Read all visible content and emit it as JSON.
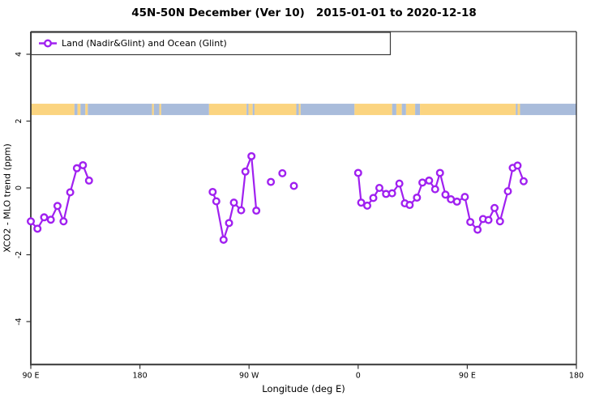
{
  "title": "45N-50N December (Ver 10)   2015-01-01 to 2020-12-18",
  "legend": {
    "label": "Land (Nadir&Glint) and Ocean (Glint)"
  },
  "axes": {
    "xlabel": "Longitude (deg E)",
    "ylabel": "XCO2 - MLO trend (ppm)"
  },
  "colors": {
    "series": "#A020F0",
    "land": "#FBD480",
    "ocean": "#A9BCDB",
    "axis": "#333333",
    "axis_heavy": "#4a4a4a",
    "tick_text": "#000000"
  },
  "chart_data": {
    "type": "line",
    "title": "45N-50N December (Ver 10)   2015-01-01 to 2020-12-18",
    "xlabel": "Longitude (deg E)",
    "ylabel": "XCO2 - MLO trend (ppm)",
    "legend": [
      "Land (Nadir&Glint) and Ocean (Glint)"
    ],
    "legend_position": "top-left",
    "grid": false,
    "x_axis_deg_span": [
      90,
      540
    ],
    "x_ticks": [
      {
        "t": 90,
        "label": "90 E"
      },
      {
        "t": 180,
        "label": "180"
      },
      {
        "t": 270,
        "label": "90 W"
      },
      {
        "t": 360,
        "label": "0"
      },
      {
        "t": 450,
        "label": "90 E"
      },
      {
        "t": 540,
        "label": "180"
      }
    ],
    "ylim": [
      -5.3,
      4.7
    ],
    "y_ticks": [
      {
        "v": -4,
        "label": "-4"
      },
      {
        "v": -2,
        "label": "-2"
      },
      {
        "v": 0,
        "label": "0"
      },
      {
        "v": 2,
        "label": "2"
      },
      {
        "v": 4,
        "label": "4"
      }
    ],
    "series": [
      {
        "name": "Land (Nadir&Glint) and Ocean (Glint)",
        "color": "#A020F0",
        "marker": "open-circle",
        "segments": [
          {
            "region": "east-asia",
            "line": true,
            "points": [
              [
                90,
                -1.0
              ],
              [
                95.5,
                -1.22
              ],
              [
                101,
                -0.88
              ],
              [
                106.5,
                -0.95
              ],
              [
                112,
                -0.54
              ],
              [
                117,
                -1.0
              ],
              [
                122.5,
                -0.13
              ],
              [
                128,
                0.59
              ],
              [
                133,
                0.68
              ],
              [
                138,
                0.22
              ]
            ]
          },
          {
            "region": "north-america",
            "line": true,
            "points": [
              [
                240,
                -0.12
              ],
              [
                243,
                -0.4
              ],
              [
                249,
                -1.55
              ],
              [
                253.5,
                -1.05
              ],
              [
                257.5,
                -0.44
              ],
              [
                263.5,
                -0.67
              ],
              [
                267,
                0.49
              ],
              [
                272,
                0.95
              ],
              [
                276,
                -0.68
              ]
            ]
          },
          {
            "region": "atlantic-isolated",
            "line": false,
            "points": [
              [
                288,
                0.18
              ],
              [
                297.5,
                0.44
              ],
              [
                307,
                0.06
              ]
            ]
          },
          {
            "region": "europe-asia",
            "line": true,
            "points": [
              [
                360,
                0.45
              ],
              [
                362.5,
                -0.44
              ],
              [
                367.5,
                -0.53
              ],
              [
                372.5,
                -0.3
              ],
              [
                377.5,
                0.0
              ],
              [
                383,
                -0.18
              ],
              [
                388,
                -0.16
              ],
              [
                394,
                0.13
              ],
              [
                398.5,
                -0.46
              ],
              [
                402.5,
                -0.51
              ],
              [
                408.5,
                -0.29
              ],
              [
                413,
                0.16
              ],
              [
                418.5,
                0.22
              ],
              [
                423.5,
                -0.04
              ],
              [
                427.5,
                0.45
              ],
              [
                432,
                -0.2
              ],
              [
                436.5,
                -0.34
              ],
              [
                441.5,
                -0.41
              ],
              [
                448,
                -0.27
              ],
              [
                452.5,
                -1.02
              ],
              [
                458.5,
                -1.25
              ],
              [
                463,
                -0.93
              ],
              [
                467.5,
                -0.96
              ],
              [
                472.5,
                -0.6
              ],
              [
                477,
                -1.0
              ],
              [
                483.5,
                -0.1
              ],
              [
                487.5,
                0.6
              ],
              [
                491.5,
                0.67
              ],
              [
                496.5,
                0.2
              ]
            ]
          }
        ]
      }
    ],
    "map_strip": {
      "description": "land/ocean band across plot near y=2.3",
      "value_top": 2.52,
      "value_bottom": 2.18,
      "land_color": "#FBD480",
      "ocean_color": "#A9BCDB",
      "segments": [
        [
          90,
          126,
          "land"
        ],
        [
          126,
          128.5,
          "ocean"
        ],
        [
          128.5,
          131,
          "land"
        ],
        [
          131,
          135,
          "ocean"
        ],
        [
          135,
          137,
          "land"
        ],
        [
          137,
          190,
          "ocean"
        ],
        [
          190,
          191.5,
          "land"
        ],
        [
          191.5,
          196,
          "ocean"
        ],
        [
          196,
          197.5,
          "land"
        ],
        [
          197.5,
          237,
          "ocean"
        ],
        [
          237,
          268,
          "land"
        ],
        [
          268,
          269.5,
          "ocean"
        ],
        [
          269.5,
          273,
          "land"
        ],
        [
          273,
          274.5,
          "ocean"
        ],
        [
          274.5,
          309,
          "land"
        ],
        [
          309,
          311,
          "ocean"
        ],
        [
          311,
          312.5,
          "land"
        ],
        [
          312.5,
          357,
          "ocean"
        ],
        [
          357,
          388,
          "land"
        ],
        [
          388,
          391.5,
          "ocean"
        ],
        [
          391.5,
          396,
          "land"
        ],
        [
          396,
          399.5,
          "ocean"
        ],
        [
          399.5,
          407,
          "land"
        ],
        [
          407,
          411,
          "ocean"
        ],
        [
          411,
          490,
          "land"
        ],
        [
          490,
          491.5,
          "ocean"
        ],
        [
          491.5,
          493.5,
          "land"
        ],
        [
          493.5,
          540,
          "ocean"
        ]
      ]
    }
  }
}
